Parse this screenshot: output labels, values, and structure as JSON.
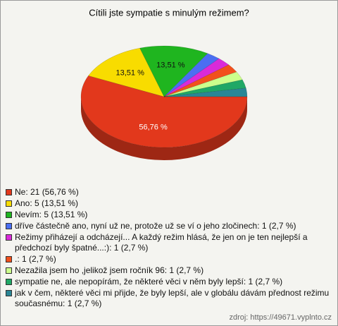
{
  "chart_data": {
    "type": "pie",
    "title": "Cítili jste sympatie s minulým režimem?",
    "categories": [
      "Ne: 21 (56,76 %)",
      "Ano: 5 (13,51 %)",
      "Nevím: 5 (13,51 %)",
      "dříve částečně ano, nyní už ne, protože už se ví o jeho zločinech: 1 (2,7 %)",
      "Režimy přiházejí a odcházejí... A každý režim hlásá, že jen on je ten nejlepší a předchozí byly špatné...:): 1 (2,7 %)",
      ".: 1 (2,7 %)",
      "Nezažila jsem ho ,jelikož jsem ročník 96: 1 (2,7 %)",
      "sympatie ne, ale nepopírám, že některé věci v něm byly lepší: 1 (2,7 %)",
      "jak v čem, některé věci mi přijde, že byly lepší, ale v globálu dávám přednost režimu současnému: 1 (2,7 %)"
    ],
    "values": [
      56.76,
      13.51,
      13.51,
      2.7,
      2.7,
      2.7,
      2.7,
      2.7,
      2.7
    ],
    "value_labels": [
      "56,76 %",
      "13,51 %",
      "13,51 %",
      null,
      null,
      null,
      null,
      null,
      null
    ],
    "colors": [
      "#e2381c",
      "#f8dc00",
      "#1fb51f",
      "#4a6ef2",
      "#d92ad9",
      "#f2501c",
      "#ccff8c",
      "#20a866",
      "#2a8696"
    ]
  },
  "source": "zdroj: https://49671.vyplnto.cz"
}
